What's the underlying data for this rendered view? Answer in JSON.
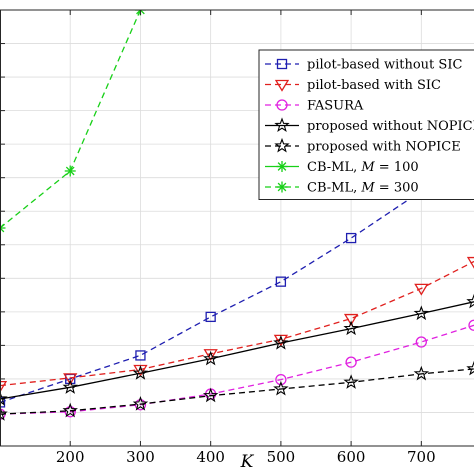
{
  "chart_data": {
    "type": "line",
    "xlabel": "K",
    "ylabel": "",
    "title": "",
    "xlim": [
      100,
      775
    ],
    "ylim": [
      0,
      13
    ],
    "xticks": [
      200,
      300,
      400,
      500,
      600,
      700
    ],
    "yticks": [
      1,
      2,
      3,
      4,
      5,
      6,
      7,
      8,
      9,
      10,
      11,
      12,
      13
    ],
    "grid": true,
    "legend": "top-right",
    "series": [
      {
        "name": "pilot-based without SIC",
        "color": "#1f1fb0",
        "dash": "dashed",
        "marker": "square",
        "x": [
          100,
          200,
          300,
          400,
          500,
          600,
          700,
          775
        ],
        "y": [
          1.3,
          2.0,
          2.7,
          3.85,
          4.9,
          6.2,
          7.6,
          9.0
        ]
      },
      {
        "name": "pilot-based with SIC",
        "color": "#e0201e",
        "dash": "dashed",
        "marker": "triangle-down",
        "x": [
          100,
          200,
          300,
          400,
          500,
          600,
          700,
          775
        ],
        "y": [
          1.8,
          2.03,
          2.28,
          2.75,
          3.18,
          3.8,
          4.7,
          5.5
        ]
      },
      {
        "name": "FASURA",
        "color": "#e020e0",
        "dash": "dashed",
        "marker": "circle",
        "x": [
          100,
          200,
          300,
          400,
          500,
          600,
          700,
          775
        ],
        "y": [
          0.95,
          1.02,
          1.23,
          1.55,
          1.98,
          2.5,
          3.1,
          3.6
        ]
      },
      {
        "name": "proposed without NOPICE",
        "color": "#000000",
        "dash": "solid",
        "marker": "star",
        "x": [
          100,
          200,
          300,
          400,
          500,
          600,
          700,
          775
        ],
        "y": [
          1.4,
          1.75,
          2.17,
          2.6,
          3.07,
          3.5,
          3.95,
          4.3
        ]
      },
      {
        "name": "proposed with NOPICE",
        "color": "#000000",
        "dash": "dashed",
        "marker": "star",
        "x": [
          100,
          200,
          300,
          400,
          500,
          600,
          700,
          775
        ],
        "y": [
          0.95,
          1.05,
          1.25,
          1.5,
          1.7,
          1.9,
          2.15,
          2.3
        ]
      },
      {
        "name": "CB-ML, M = 100",
        "color": "#18d018",
        "dash": "solid",
        "marker": "asterisk",
        "x": [],
        "y": []
      },
      {
        "name": "CB-ML, M = 300",
        "color": "#18d018",
        "dash": "dashed",
        "marker": "asterisk",
        "x": [
          100,
          200,
          300
        ],
        "y": [
          6.5,
          8.2,
          13.0
        ]
      }
    ]
  },
  "legend_entries": [
    {
      "prefix": "pilot-based without SIC",
      "var": "",
      "suffix": ""
    },
    {
      "prefix": "pilot-based with SIC",
      "var": "",
      "suffix": ""
    },
    {
      "prefix": "FASURA",
      "var": "",
      "suffix": ""
    },
    {
      "prefix": "proposed without NOPICE",
      "var": "",
      "suffix": ""
    },
    {
      "prefix": "proposed with NOPICE",
      "var": "",
      "suffix": ""
    },
    {
      "prefix": "CB-ML, ",
      "var": "M",
      "suffix": " = 100"
    },
    {
      "prefix": "CB-ML, ",
      "var": "M",
      "suffix": " = 300"
    }
  ]
}
